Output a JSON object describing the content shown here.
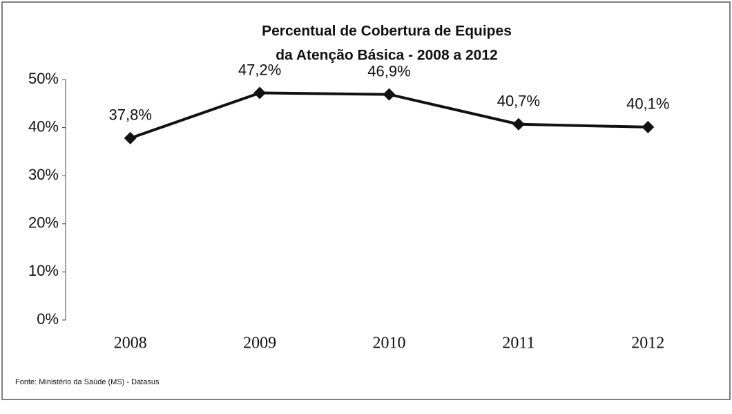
{
  "chart_data": {
    "type": "line",
    "title": [
      "Percentual de Cobertura de Equipes",
      "da Atenção Básica - 2008 a 2012"
    ],
    "categories": [
      "2008",
      "2009",
      "2010",
      "2011",
      "2012"
    ],
    "series": [
      {
        "name": "Cobertura",
        "color": "#111111",
        "values": [
          37.8,
          47.2,
          46.9,
          40.7,
          40.1
        ],
        "value_labels": [
          "37,8%",
          "47,2%",
          "46,9%",
          "40,7%",
          "40,1%"
        ]
      }
    ],
    "ylim": [
      0,
      50
    ],
    "yticks": [
      {
        "value": 0,
        "label": "0%"
      },
      {
        "value": 10,
        "label": "10%"
      },
      {
        "value": 20,
        "label": "20%"
      },
      {
        "value": 30,
        "label": "30%"
      },
      {
        "value": 40,
        "label": "40%"
      },
      {
        "value": 50,
        "label": "50%"
      }
    ],
    "grid": false,
    "source": "Fonte: Ministério da Saúde (MS) - Datasus"
  }
}
